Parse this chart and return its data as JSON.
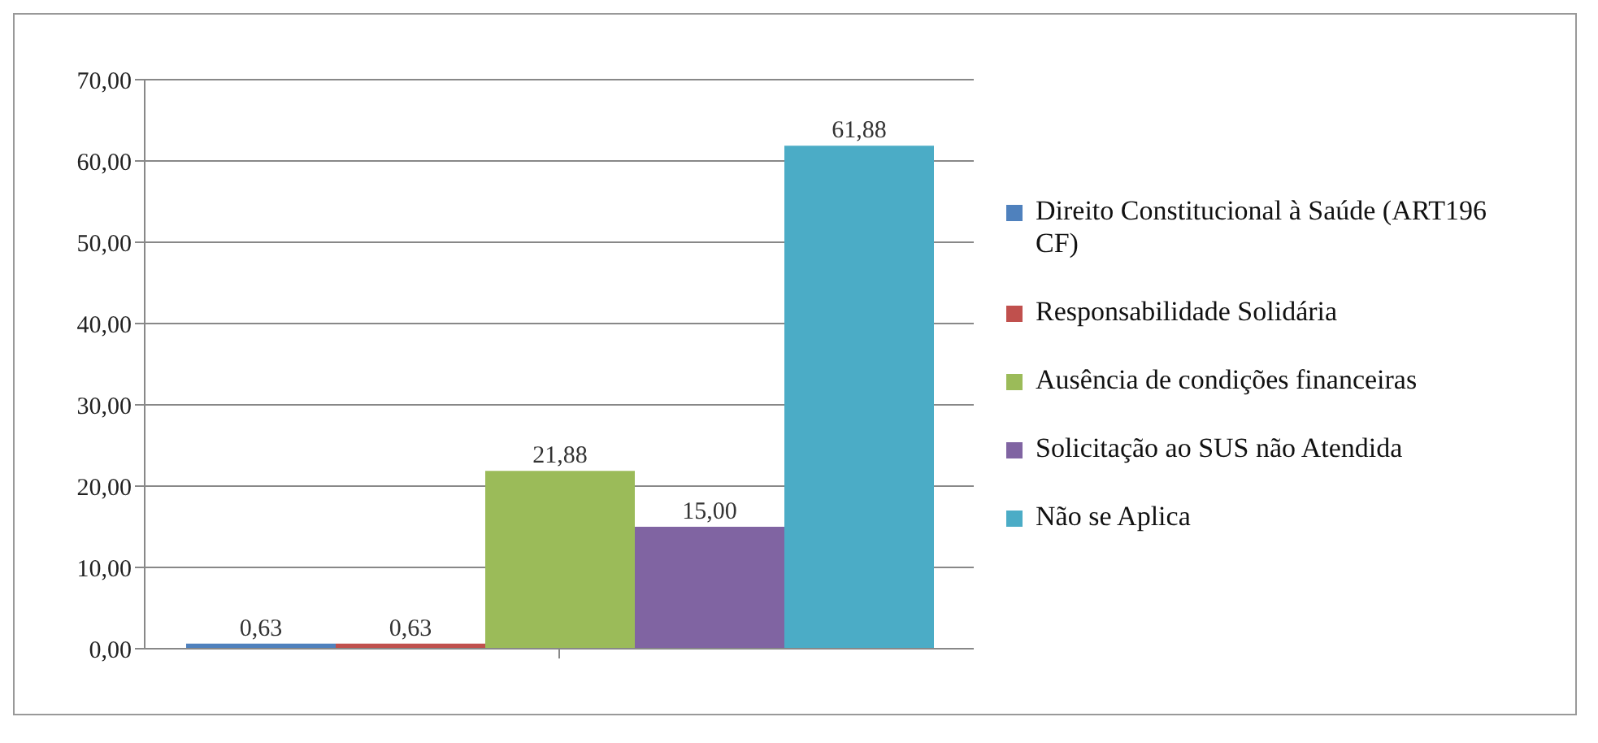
{
  "chart_data": {
    "type": "bar",
    "categories": [
      null
    ],
    "series": [
      {
        "name": "Direito Constitucional à Saúde (ART196 CF)",
        "color": "#4f81bd",
        "values": [
          0.63
        ],
        "value_labels": [
          "0,63"
        ]
      },
      {
        "name": "Responsabilidade Solidária",
        "color": "#c0504d",
        "values": [
          0.63
        ],
        "value_labels": [
          "0,63"
        ]
      },
      {
        "name": "Ausência de condições financeiras",
        "color": "#9bbb59",
        "values": [
          21.88
        ],
        "value_labels": [
          "21,88"
        ]
      },
      {
        "name": "Solicitação ao SUS não Atendida",
        "color": "#8064a2",
        "values": [
          15.0
        ],
        "value_labels": [
          "15,00"
        ]
      },
      {
        "name": "Não se Aplica",
        "color": "#4bacc6",
        "values": [
          61.88
        ],
        "value_labels": [
          "61,88"
        ]
      }
    ],
    "ylim": [
      0,
      70
    ],
    "yticks": [
      {
        "value": 0,
        "label": "0,00"
      },
      {
        "value": 10,
        "label": "10,00"
      },
      {
        "value": 20,
        "label": "20,00"
      },
      {
        "value": 30,
        "label": "30,00"
      },
      {
        "value": 40,
        "label": "40,00"
      },
      {
        "value": 50,
        "label": "50,00"
      },
      {
        "value": 60,
        "label": "60,00"
      },
      {
        "value": 70,
        "label": "70,00"
      }
    ],
    "grid": "y",
    "legend": "right"
  }
}
